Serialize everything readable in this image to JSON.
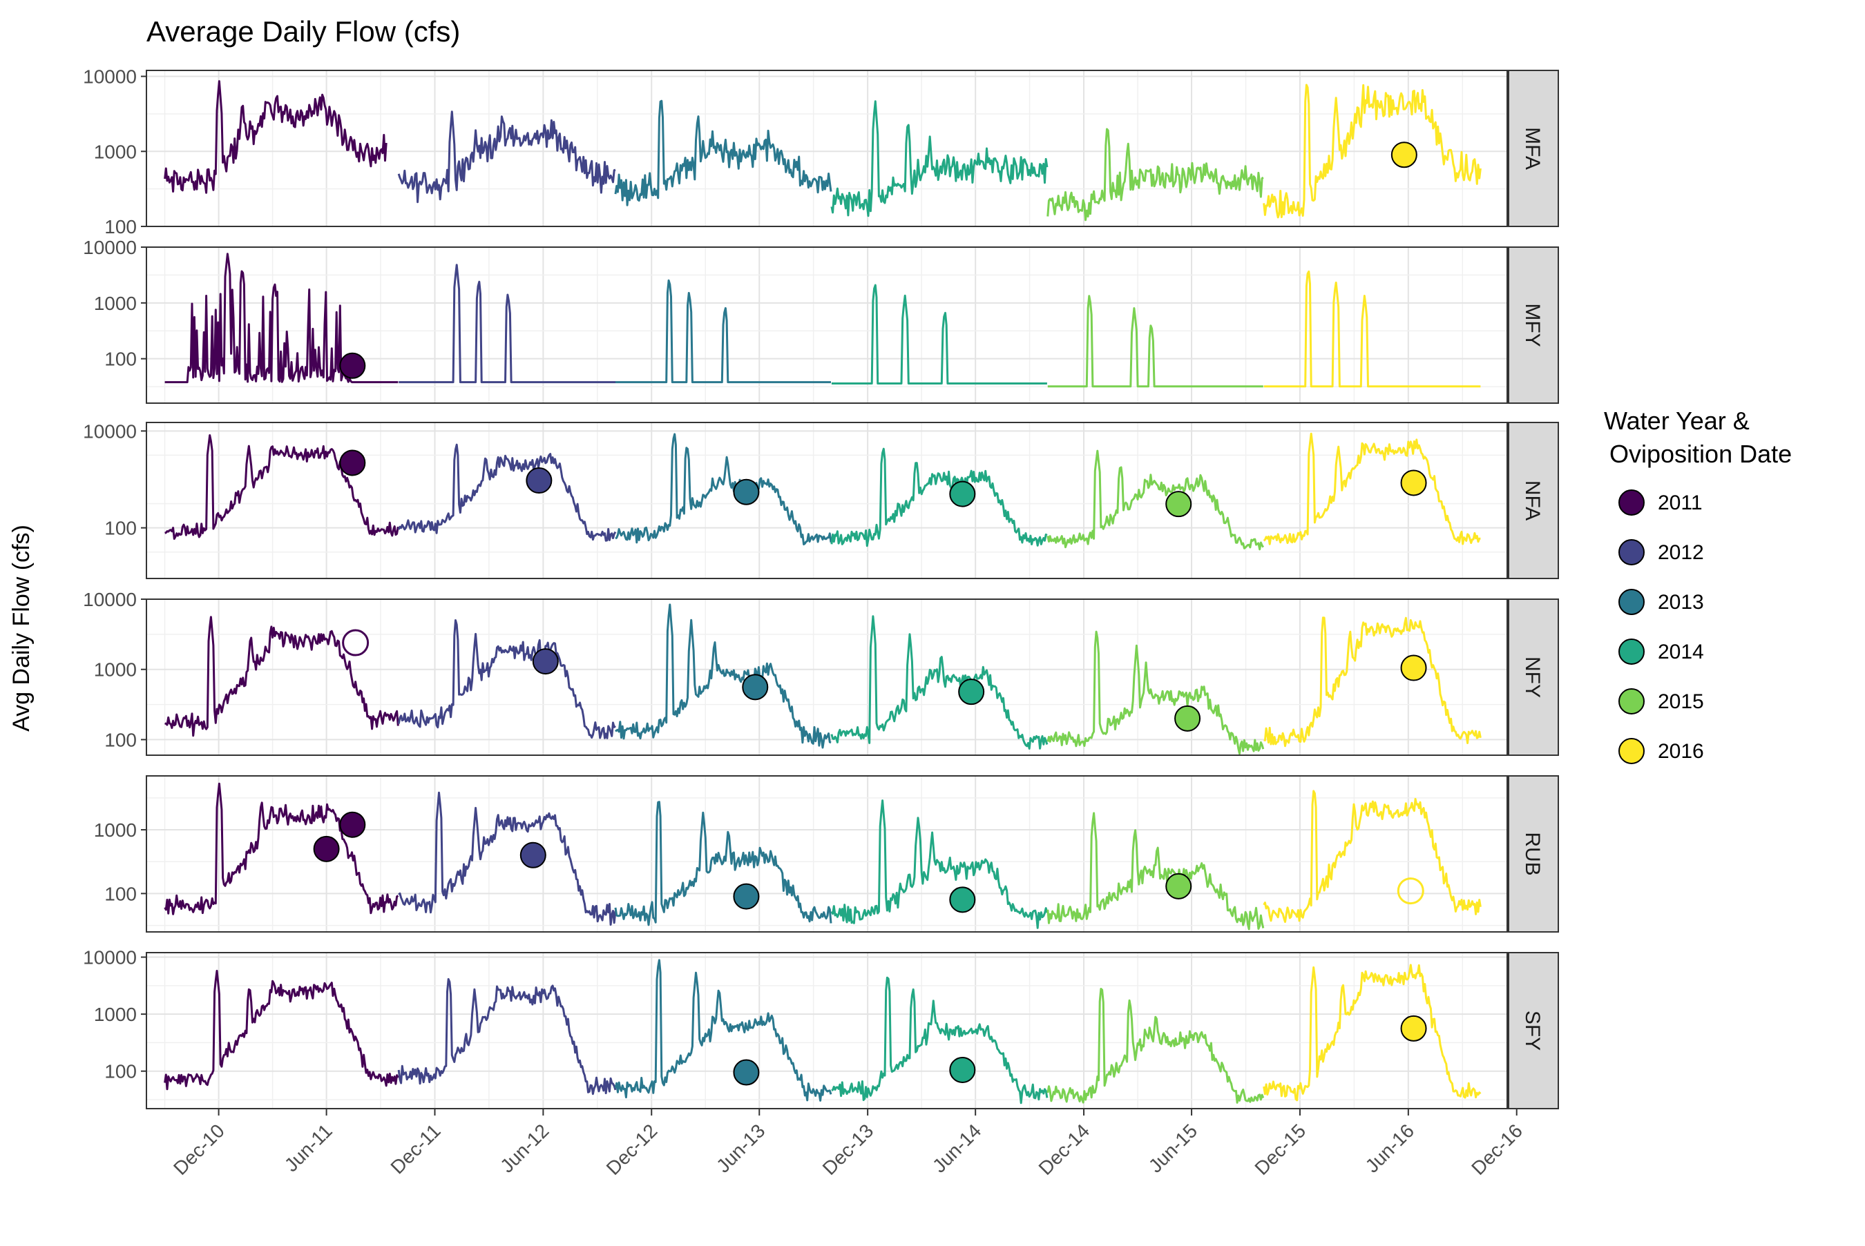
{
  "chart_data": {
    "type": "line",
    "title": "Average Daily Flow (cfs)",
    "ylabel": "Avg Daily Flow (cfs)",
    "xlabel": "",
    "y_scale": "log10",
    "grid": true,
    "legend": {
      "title_line1": "Water Year &",
      "title_line2": "Oviposition Date",
      "placement": "right",
      "entries": [
        {
          "label": "2011",
          "color": "#440154"
        },
        {
          "label": "2012",
          "color": "#414487"
        },
        {
          "label": "2013",
          "color": "#2A788E"
        },
        {
          "label": "2014",
          "color": "#22A884"
        },
        {
          "label": "2015",
          "color": "#7AD151"
        },
        {
          "label": "2016",
          "color": "#FDE725"
        }
      ]
    },
    "x_ticks": [
      "Dec-10",
      "Jun-11",
      "Dec-11",
      "Jun-12",
      "Dec-12",
      "Jun-13",
      "Dec-13",
      "Jun-14",
      "Dec-14",
      "Jun-15",
      "Dec-15",
      "Jun-16",
      "Dec-16"
    ],
    "x_range": [
      "2010-08-01",
      "2016-11-15"
    ],
    "water_years": [
      {
        "year": "2011",
        "start": "2010-10-01",
        "end": "2011-09-30"
      },
      {
        "year": "2012",
        "start": "2011-10-01",
        "end": "2012-09-30"
      },
      {
        "year": "2013",
        "start": "2012-10-01",
        "end": "2013-09-30"
      },
      {
        "year": "2014",
        "start": "2013-10-01",
        "end": "2014-09-30"
      },
      {
        "year": "2015",
        "start": "2014-10-01",
        "end": "2015-09-30"
      },
      {
        "year": "2016",
        "start": "2015-10-01",
        "end": "2016-09-30"
      }
    ],
    "panels": [
      {
        "name": "MFA",
        "ylim": [
          100,
          12000
        ],
        "y_ticks": [
          "100",
          "1000",
          "10000"
        ],
        "points": [
          {
            "date": "2016-05-25",
            "value": 900,
            "year": "2016",
            "filled": true
          }
        ]
      },
      {
        "name": "MFY",
        "ylim": [
          16,
          10000
        ],
        "y_ticks": [
          "100",
          "1000",
          "10000"
        ],
        "points": [
          {
            "date": "2011-07-15",
            "value": 75,
            "year": "2011",
            "filled": true
          }
        ]
      },
      {
        "name": "NFA",
        "ylim": [
          9,
          15000
        ],
        "y_ticks": [
          "100",
          "10000"
        ],
        "points": [
          {
            "date": "2011-07-15",
            "value": 2200,
            "year": "2011",
            "filled": true
          },
          {
            "date": "2012-05-25",
            "value": 950,
            "year": "2012",
            "filled": true
          },
          {
            "date": "2013-05-10",
            "value": 550,
            "year": "2013",
            "filled": true
          },
          {
            "date": "2014-05-10",
            "value": 500,
            "year": "2014",
            "filled": true
          },
          {
            "date": "2015-05-10",
            "value": 310,
            "year": "2015",
            "filled": true
          },
          {
            "date": "2016-06-10",
            "value": 850,
            "year": "2016",
            "filled": true
          }
        ]
      },
      {
        "name": "NFY",
        "ylim": [
          60,
          10000
        ],
        "y_ticks": [
          "100",
          "1000",
          "10000"
        ],
        "points": [
          {
            "date": "2011-07-20",
            "value": 2400,
            "year": "2011",
            "filled": false
          },
          {
            "date": "2012-06-05",
            "value": 1300,
            "year": "2012",
            "filled": true
          },
          {
            "date": "2013-05-25",
            "value": 560,
            "year": "2013",
            "filled": true
          },
          {
            "date": "2014-05-25",
            "value": 480,
            "year": "2014",
            "filled": true
          },
          {
            "date": "2015-05-25",
            "value": 200,
            "year": "2015",
            "filled": true
          },
          {
            "date": "2016-06-10",
            "value": 1050,
            "year": "2016",
            "filled": true
          }
        ]
      },
      {
        "name": "RUB",
        "ylim": [
          25,
          7000
        ],
        "y_ticks": [
          "100",
          "1000"
        ],
        "points": [
          {
            "date": "2011-06-01",
            "value": 500,
            "year": "2011",
            "filled": true
          },
          {
            "date": "2011-07-15",
            "value": 1200,
            "year": "2011",
            "filled": true
          },
          {
            "date": "2012-05-15",
            "value": 400,
            "year": "2012",
            "filled": true
          },
          {
            "date": "2013-05-10",
            "value": 90,
            "year": "2013",
            "filled": true
          },
          {
            "date": "2014-05-10",
            "value": 80,
            "year": "2014",
            "filled": true
          },
          {
            "date": "2015-05-10",
            "value": 130,
            "year": "2015",
            "filled": true
          },
          {
            "date": "2016-06-05",
            "value": 110,
            "year": "2016",
            "filled": false
          }
        ]
      },
      {
        "name": "SFY",
        "ylim": [
          22,
          12000
        ],
        "y_ticks": [
          "100",
          "1000",
          "10000"
        ],
        "points": [
          {
            "date": "2013-05-10",
            "value": 95,
            "year": "2013",
            "filled": true
          },
          {
            "date": "2014-05-10",
            "value": 105,
            "year": "2014",
            "filled": true
          },
          {
            "date": "2016-06-10",
            "value": 560,
            "year": "2016",
            "filled": true
          }
        ]
      }
    ]
  }
}
